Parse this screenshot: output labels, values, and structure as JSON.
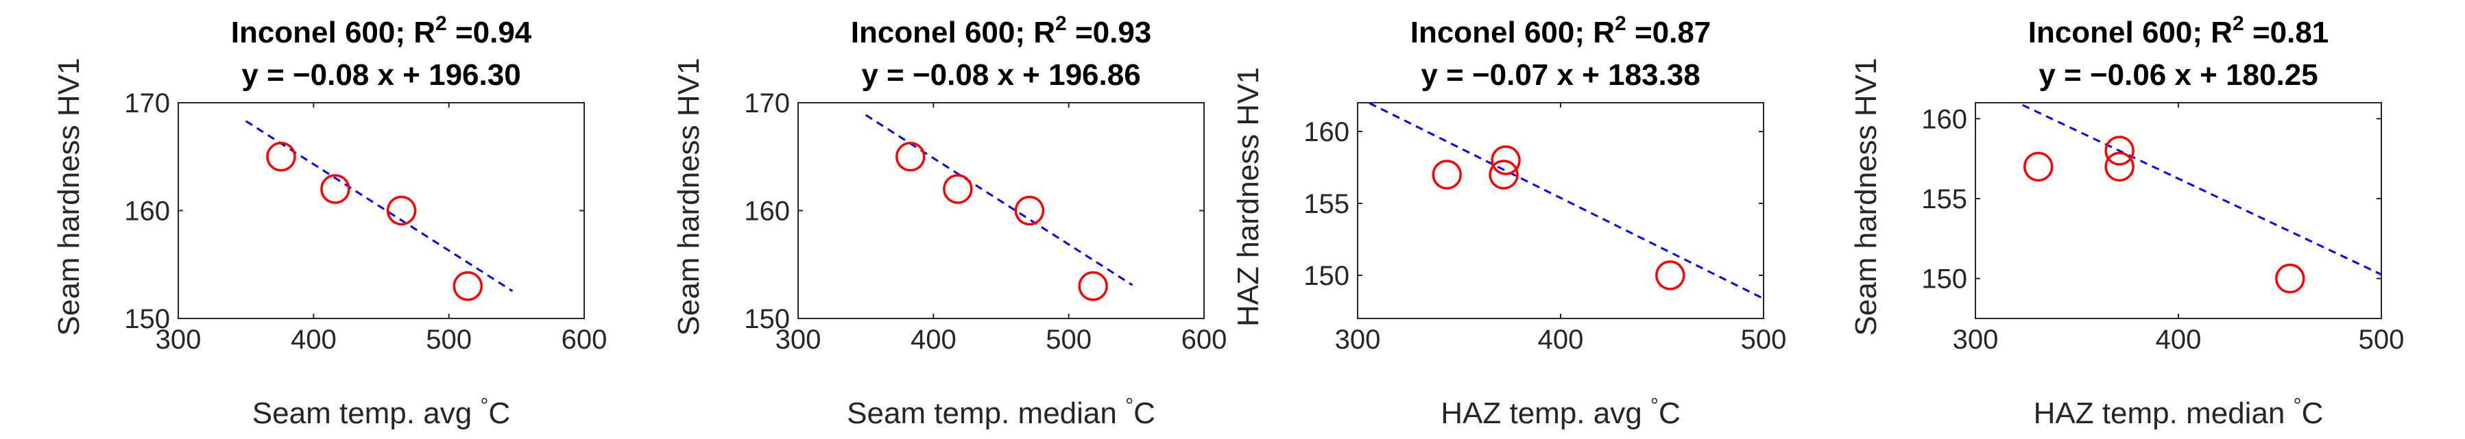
{
  "chart_data": [
    {
      "type": "scatter",
      "title_prefix": "Inconel 600; R",
      "r2_sup": "2",
      "r2_value": " =0.94",
      "subtitle": "y = −0.08 x + 196.30",
      "xlabel": "Seam temp. avg",
      "xlabel_unit": "C",
      "xlabel_deg": "°",
      "ylabel": "Seam hardness HV1",
      "xlim": [
        300,
        600
      ],
      "ylim": [
        150,
        170
      ],
      "xticks": [
        300,
        400,
        500,
        600
      ],
      "yticks": [
        150,
        160,
        170
      ],
      "x": [
        376,
        416,
        465,
        514
      ],
      "y": [
        165,
        162,
        160,
        153
      ],
      "fit": {
        "slope": -0.08,
        "intercept": 196.3,
        "x_range": [
          350,
          547
        ]
      },
      "marker_color": "#ff0000",
      "line_color": "#0000ff"
    },
    {
      "type": "scatter",
      "title_prefix": "Inconel 600; R",
      "r2_sup": "2",
      "r2_value": " =0.93",
      "subtitle": "y = −0.08 x + 196.86",
      "xlabel": "Seam temp. median",
      "xlabel_unit": "C",
      "xlabel_deg": "°",
      "ylabel": "Seam hardness HV1",
      "xlim": [
        300,
        600
      ],
      "ylim": [
        150,
        170
      ],
      "xticks": [
        300,
        400,
        500,
        600
      ],
      "yticks": [
        150,
        160,
        170
      ],
      "x": [
        383,
        418,
        471,
        518
      ],
      "y": [
        165,
        162,
        160,
        153
      ],
      "fit": {
        "slope": -0.08,
        "intercept": 196.86,
        "x_range": [
          350,
          547
        ]
      },
      "marker_color": "#ff0000",
      "line_color": "#0000ff"
    },
    {
      "type": "scatter",
      "title_prefix": "Inconel 600; R",
      "r2_sup": "2",
      "r2_value": " =0.87",
      "subtitle": "y = −0.07 x + 183.38",
      "xlabel": "HAZ temp. avg",
      "xlabel_unit": "C",
      "xlabel_deg": "°",
      "ylabel": "HAZ hardness HV1",
      "xlim": [
        300,
        500
      ],
      "ylim": [
        147,
        162
      ],
      "xticks": [
        300,
        400,
        500
      ],
      "yticks": [
        150,
        155,
        160
      ],
      "x": [
        344,
        372,
        373,
        454
      ],
      "y": [
        157,
        157,
        158,
        150
      ],
      "fit": {
        "slope": -0.07,
        "intercept": 183.38,
        "x_range": [
          300,
          500
        ]
      },
      "marker_color": "#ff0000",
      "line_color": "#0000ff"
    },
    {
      "type": "scatter",
      "title_prefix": "Inconel 600; R",
      "r2_sup": "2",
      "r2_value": " =0.81",
      "subtitle": "y = −0.06 x + 180.25",
      "xlabel": "HAZ temp. median",
      "xlabel_unit": "C",
      "xlabel_deg": "°",
      "ylabel": "Seam hardness HV1",
      "xlim": [
        300,
        500
      ],
      "ylim": [
        147.5,
        161
      ],
      "xticks": [
        300,
        400,
        500
      ],
      "yticks": [
        150,
        155,
        160
      ],
      "x": [
        331,
        371,
        371,
        455
      ],
      "y": [
        157,
        157,
        158,
        150
      ],
      "fit": {
        "slope": -0.06,
        "intercept": 180.25,
        "x_range": [
          300,
          500
        ]
      },
      "marker_color": "#ff0000",
      "line_color": "#0000ff"
    }
  ]
}
